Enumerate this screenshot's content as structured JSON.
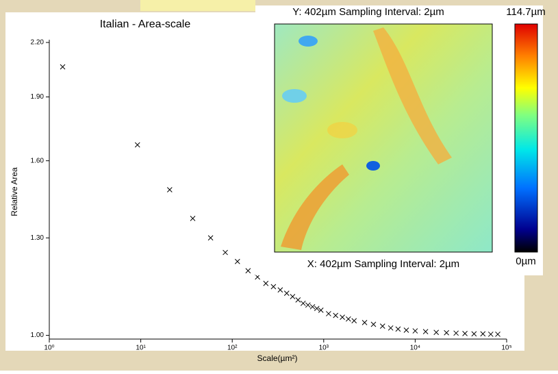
{
  "chart_data": {
    "type": "scatter",
    "title": "Italian - Area-scale",
    "x_label": "Scale(µm²)",
    "y_label": "Relative Area",
    "x": [
      1.4,
      9.2,
      20.7,
      37,
      58,
      84,
      114,
      149,
      189,
      233,
      282,
      335,
      394,
      457,
      524,
      596,
      673,
      755,
      841,
      932,
      1130,
      1350,
      1600,
      1860,
      2150,
      2800,
      3500,
      4400,
      5400,
      6500,
      8000,
      10000,
      13000,
      17000,
      22000,
      28000,
      35000,
      44000,
      55000,
      67000,
      80000
    ],
    "values": [
      2.06,
      1.67,
      1.48,
      1.37,
      1.3,
      1.25,
      1.22,
      1.19,
      1.17,
      1.15,
      1.14,
      1.13,
      1.12,
      1.11,
      1.1,
      1.09,
      1.085,
      1.08,
      1.075,
      1.07,
      1.06,
      1.055,
      1.05,
      1.045,
      1.04,
      1.035,
      1.03,
      1.025,
      1.02,
      1.017,
      1.014,
      1.012,
      1.01,
      1.008,
      1.007,
      1.006,
      1.005,
      1.004,
      1.004,
      1.003,
      1.003
    ],
    "color": "#000000",
    "x_log": true,
    "y_log": true,
    "xlim": [
      1,
      100000
    ],
    "ylim": [
      0.99,
      2.2
    ],
    "xticks": [
      {
        "value": 1,
        "label": "10⁰"
      },
      {
        "value": 10,
        "label": "10¹"
      },
      {
        "value": 100,
        "label": "10²"
      },
      {
        "value": 1000,
        "label": "10³"
      },
      {
        "value": 10000,
        "label": "10⁴"
      },
      {
        "value": 100000,
        "label": "10⁵"
      }
    ],
    "yticks": [
      {
        "value": 1,
        "label": "1.00"
      },
      {
        "value": 1.3,
        "label": "1.30"
      },
      {
        "value": 1.6,
        "label": "1.60"
      },
      {
        "value": 1.9,
        "label": "1.90"
      },
      {
        "value": 2.2,
        "label": "2.20"
      }
    ]
  },
  "inset": {
    "top_label": "Y: 402µm Sampling Interval: 2µm",
    "bottom_label": "X: 402µm Sampling Interval: 2µm",
    "scale_max": "114.7µm",
    "scale_min": "0µm"
  }
}
